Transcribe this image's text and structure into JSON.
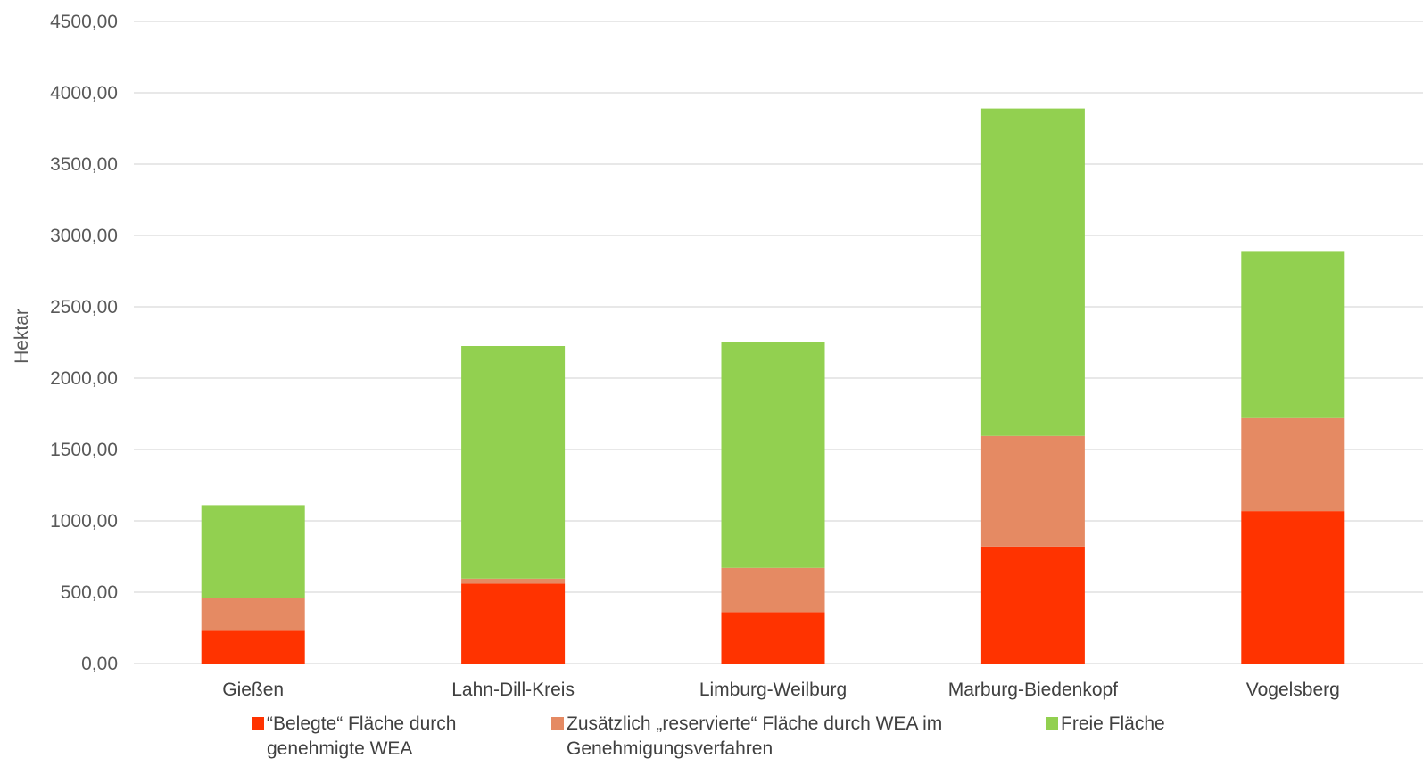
{
  "chart_data": {
    "type": "bar",
    "stacked": true,
    "title": "",
    "xlabel": "",
    "ylabel": "Hektar",
    "ylim": [
      0,
      4500
    ],
    "y_ticks": [
      "0,00",
      "500,00",
      "1000,00",
      "1500,00",
      "2000,00",
      "2500,00",
      "3000,00",
      "3500,00",
      "4000,00",
      "4500,00"
    ],
    "grid": true,
    "legend_position": "bottom",
    "categories": [
      "Gießen",
      "Lahn-Dill-Kreis",
      "Limburg-Weilburg",
      "Marburg-Biedenkopf",
      "Vogelsberg"
    ],
    "series": [
      {
        "name": "“Belegte“ Fläche durch\ngenehmigte WEA",
        "color": "#ff3300",
        "values": [
          235,
          560,
          360,
          820,
          1068
        ]
      },
      {
        "name": "Zusätzlich „reservierte“ Fläche durch WEA im\nGenehmigungsverfahren",
        "color": "#e58a63",
        "values": [
          225,
          35,
          310,
          775,
          652
        ]
      },
      {
        "name": "Freie Fläche",
        "color": "#92d050",
        "values": [
          650,
          1630,
          1585,
          2295,
          1165
        ]
      }
    ]
  }
}
